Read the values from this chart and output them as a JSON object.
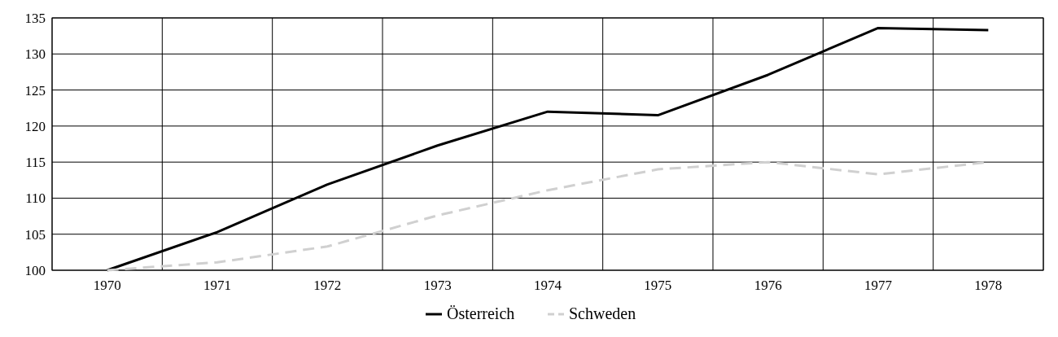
{
  "chart_data": {
    "type": "line",
    "categories": [
      "1970",
      "1971",
      "1972",
      "1973",
      "1974",
      "1975",
      "1976",
      "1977",
      "1978"
    ],
    "series": [
      {
        "name": "Österreich",
        "color": "#000000",
        "line_style": "solid",
        "values": [
          100,
          105.3,
          111.9,
          117.3,
          122,
          121.5,
          127.1,
          133.6,
          133.3
        ]
      },
      {
        "name": "Schweden",
        "color": "#d0d0d0",
        "line_style": "dashed",
        "values": [
          100,
          101.1,
          103.3,
          107.6,
          111.1,
          114,
          115,
          113.3,
          115
        ]
      }
    ],
    "ylim": [
      100,
      135
    ],
    "yticks": [
      100,
      105,
      110,
      115,
      120,
      125,
      130,
      135
    ],
    "grid": true,
    "legend": "bottom"
  }
}
